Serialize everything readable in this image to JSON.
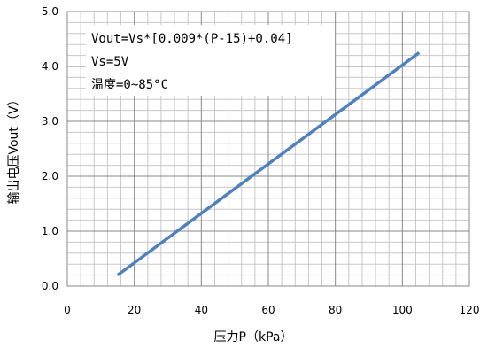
{
  "chart_data": {
    "type": "line",
    "xlabel": "压力P（kPa）",
    "ylabel": "输出电压Vout（V）",
    "xlim": [
      0,
      120
    ],
    "ylim": [
      0.0,
      5.0
    ],
    "x_ticks": [
      "0",
      "20",
      "40",
      "60",
      "80",
      "100",
      "120"
    ],
    "y_ticks": [
      "0.0",
      "1.0",
      "2.0",
      "3.0",
      "4.0",
      "5.0"
    ],
    "grid": true,
    "series": [
      {
        "x": [
          15,
          105
        ],
        "y": [
          0.2,
          4.25
        ],
        "color": "#4f81bd"
      }
    ],
    "annotations": [
      "Vout=Vs*[0.009*(P-15)+0.04]",
      "Vs=5V",
      "温度=0~85°C"
    ]
  }
}
